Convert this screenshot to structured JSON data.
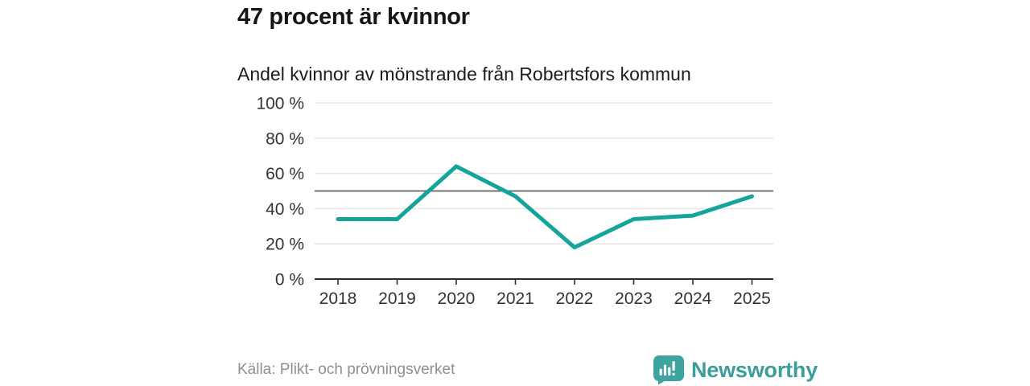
{
  "chart_data": {
    "type": "line",
    "title": "47 procent är kvinnor",
    "subtitle": "Andel kvinnor av mönstrande från Robertsfors kommun",
    "categories": [
      "2018",
      "2019",
      "2020",
      "2021",
      "2022",
      "2023",
      "2024",
      "2025"
    ],
    "series": [
      {
        "name": "andel-kvinnor",
        "values": [
          34,
          34,
          64,
          47,
          18,
          34,
          36,
          47
        ]
      }
    ],
    "ylim": [
      0,
      100
    ],
    "yticks": [
      {
        "value": 0,
        "label": "0 %"
      },
      {
        "value": 20,
        "label": "20 %"
      },
      {
        "value": 40,
        "label": "40 %"
      },
      {
        "value": 60,
        "label": "60 %"
      },
      {
        "value": 80,
        "label": "80 %"
      },
      {
        "value": 100,
        "label": "100 %"
      }
    ],
    "reference_line": {
      "value": 50
    },
    "grid": true,
    "legend": "none",
    "colors": {
      "line": "#14a49b",
      "grid": "#e3e3e3",
      "axis": "#2e2e2e",
      "reference": "#5f5f5f",
      "tick_text": "#333333"
    }
  },
  "footer": {
    "source": "Källa: Plikt- och prövningsverket",
    "brand": "Newsworthy",
    "brand_color": "#3a9e9c",
    "logo_color": "#3fa3a0"
  }
}
